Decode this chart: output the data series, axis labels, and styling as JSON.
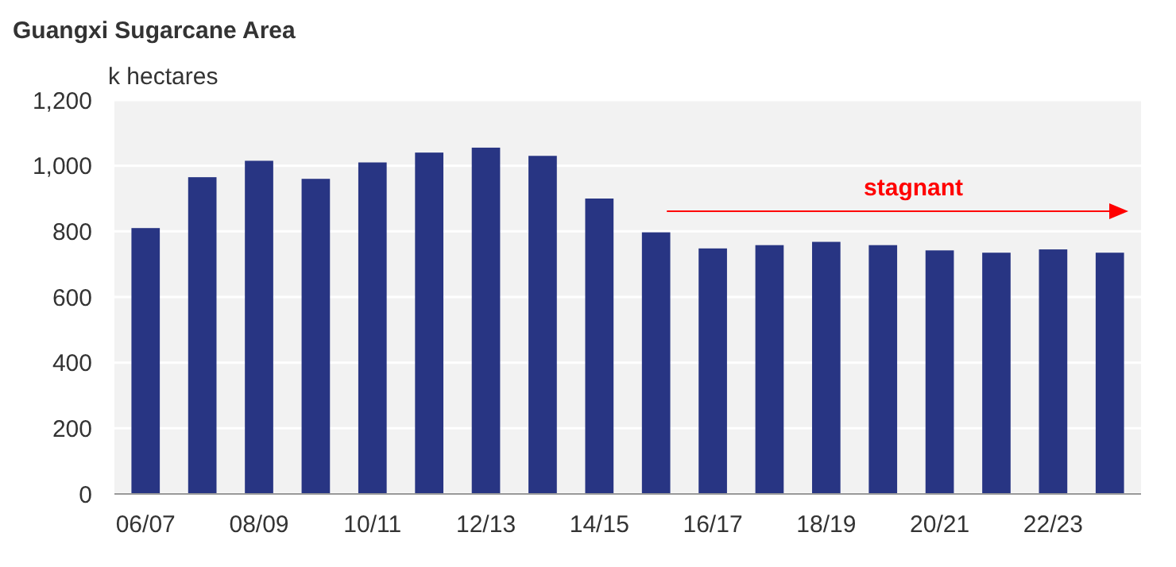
{
  "chart_data": {
    "type": "bar",
    "title": "Guangxi Sugarcane Area",
    "ylabel": "k hectares",
    "categories": [
      "06/07",
      null,
      "08/09",
      null,
      "10/11",
      null,
      "12/13",
      null,
      "14/15",
      null,
      "16/17",
      null,
      "18/19",
      null,
      "20/21",
      null,
      "22/23",
      null
    ],
    "values": [
      810,
      965,
      1015,
      960,
      1010,
      1040,
      1055,
      1030,
      900,
      797,
      748,
      758,
      768,
      758,
      742,
      735,
      745,
      735
    ],
    "color": "#283583",
    "ylim": [
      0,
      1200
    ],
    "yticks": [
      0,
      200,
      400,
      600,
      800,
      {
        "value": 1000,
        "label": "1,000"
      },
      {
        "value": 1200,
        "label": "1,200"
      }
    ],
    "grid": "y",
    "annotations": [
      "stagnant"
    ]
  }
}
